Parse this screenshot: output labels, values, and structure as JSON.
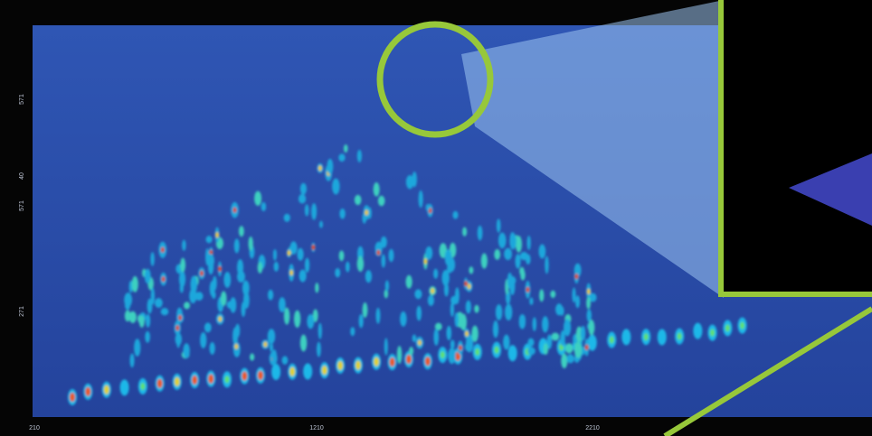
{
  "plot": {
    "x_axis_labels": [
      "210",
      "1210",
      "2210"
    ],
    "y_axis_labels": [
      "571",
      "40",
      "571",
      "271"
    ]
  }
}
